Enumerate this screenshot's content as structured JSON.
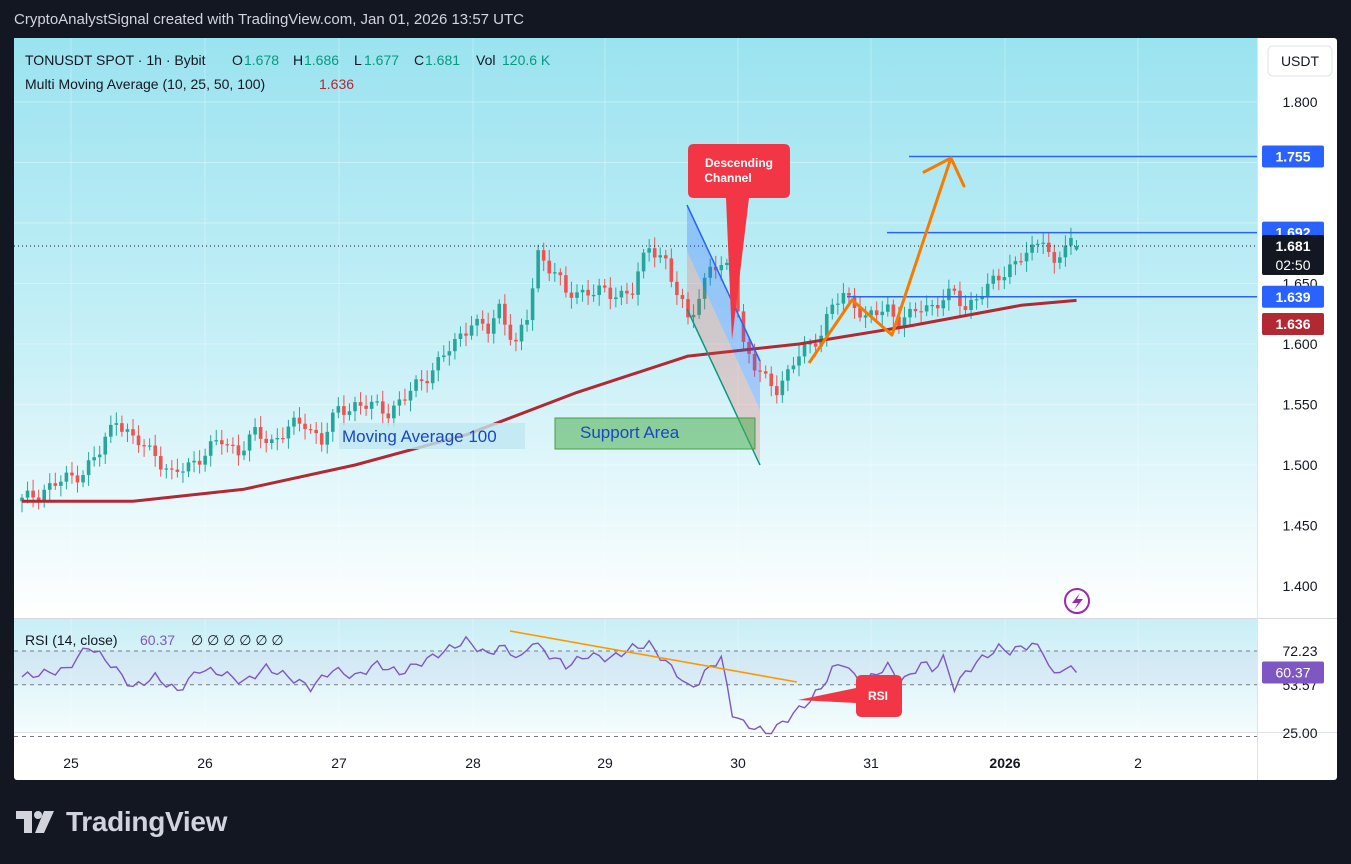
{
  "caption": "CryptoAnalystSignal created with TradingView.com, Jan 01, 2026 13:57 UTC",
  "brand": "TradingView",
  "header": {
    "symbol": "TONUSDT SPOT · 1h · Bybit",
    "o_label": "O",
    "o": "1.678",
    "h_label": "H",
    "h": "1.686",
    "l_label": "L",
    "l": "1.677",
    "c_label": "C",
    "c": "1.681",
    "vol_label": "Vol",
    "vol": "120.6 K",
    "indicator": "Multi Moving Average (10, 25, 50, 100)",
    "indicator_value": "1.636"
  },
  "currency_button": "USDT",
  "price_axis": {
    "ticks": [
      "1.800",
      "1.650",
      "1.600",
      "1.550",
      "1.500",
      "1.450",
      "1.400"
    ],
    "badges": {
      "target": "1.755",
      "resistance": "1.692",
      "last": "1.681",
      "countdown": "02:50",
      "support": "1.639",
      "ma": "1.636"
    }
  },
  "rsi": {
    "label": "RSI (14, close)",
    "value": "60.37",
    "extras": "∅ ∅ ∅ ∅ ∅ ∅",
    "ticks": [
      "72.23",
      "53.57",
      "25.00"
    ],
    "current": "60.37",
    "tag": "RSI"
  },
  "time_axis": [
    "25",
    "26",
    "27",
    "28",
    "29",
    "30",
    "31",
    "2026",
    "2"
  ],
  "annotations": {
    "descending_channel": [
      "Descending",
      "Channel"
    ],
    "support_area": "Support Area",
    "moving_average": "Moving Average 100"
  },
  "colors": {
    "up": "#26a69a",
    "down": "#ef5350",
    "ma": "#b22833",
    "level": "#2962ff",
    "arrow": "#f57c00",
    "rsi": "#7e57c2",
    "rsi_trend": "#ff9800",
    "bg_top": "#9ae3f0",
    "bg_bottom": "#ffffff"
  },
  "chart_data": {
    "type": "candlestick",
    "symbol": "TONUSDT",
    "interval": "1h",
    "x_ticks": [
      "25",
      "26",
      "27",
      "28",
      "29",
      "30",
      "31",
      "2026",
      "2"
    ],
    "price_range": [
      1.37,
      1.84
    ],
    "last": {
      "open": 1.678,
      "high": 1.686,
      "low": 1.677,
      "close": 1.681,
      "volume": "120.6 K"
    },
    "close_anchors": [
      [
        0,
        1.47
      ],
      [
        4,
        1.48
      ],
      [
        8,
        1.488
      ],
      [
        11,
        1.495
      ],
      [
        14,
        1.51
      ],
      [
        17,
        1.54
      ],
      [
        20,
        1.52
      ],
      [
        24,
        1.51
      ],
      [
        27,
        1.49
      ],
      [
        30,
        1.5
      ],
      [
        33,
        1.51
      ],
      [
        36,
        1.52
      ],
      [
        39,
        1.512
      ],
      [
        42,
        1.525
      ],
      [
        45,
        1.52
      ],
      [
        48,
        1.53
      ],
      [
        51,
        1.535
      ],
      [
        54,
        1.52
      ],
      [
        57,
        1.545
      ],
      [
        60,
        1.55
      ],
      [
        63,
        1.548
      ],
      [
        66,
        1.545
      ],
      [
        69,
        1.555
      ],
      [
        72,
        1.57
      ],
      [
        75,
        1.585
      ],
      [
        78,
        1.6
      ],
      [
        81,
        1.62
      ],
      [
        84,
        1.61
      ],
      [
        86,
        1.63
      ],
      [
        89,
        1.6
      ],
      [
        91,
        1.62
      ],
      [
        93,
        1.675
      ],
      [
        96,
        1.66
      ],
      [
        98,
        1.64
      ],
      [
        102,
        1.645
      ],
      [
        106,
        1.64
      ],
      [
        110,
        1.645
      ],
      [
        113,
        1.68
      ],
      [
        116,
        1.67
      ],
      [
        118,
        1.64
      ],
      [
        120,
        1.62
      ],
      [
        122,
        1.64
      ],
      [
        124,
        1.665
      ],
      [
        126,
        1.66
      ],
      [
        128,
        1.665
      ],
      [
        130,
        1.6
      ],
      [
        132,
        1.58
      ],
      [
        134,
        1.57
      ],
      [
        136,
        1.565
      ],
      [
        138,
        1.575
      ],
      [
        140,
        1.59
      ],
      [
        142,
        1.6
      ],
      [
        144,
        1.61
      ],
      [
        146,
        1.63
      ],
      [
        148,
        1.64
      ],
      [
        150,
        1.635
      ],
      [
        152,
        1.62
      ],
      [
        154,
        1.625
      ],
      [
        156,
        1.63
      ],
      [
        158,
        1.62
      ],
      [
        160,
        1.622
      ],
      [
        162,
        1.63
      ],
      [
        164,
        1.632
      ],
      [
        166,
        1.638
      ],
      [
        168,
        1.64
      ],
      [
        170,
        1.63
      ],
      [
        172,
        1.64
      ],
      [
        174,
        1.645
      ],
      [
        176,
        1.655
      ],
      [
        178,
        1.665
      ],
      [
        180,
        1.672
      ],
      [
        182,
        1.675
      ],
      [
        184,
        1.69
      ],
      [
        186,
        1.665
      ],
      [
        188,
        1.682
      ],
      [
        190,
        1.681
      ]
    ],
    "ma100": [
      [
        0,
        1.47
      ],
      [
        20,
        1.47
      ],
      [
        40,
        1.48
      ],
      [
        60,
        1.5
      ],
      [
        80,
        1.525
      ],
      [
        100,
        1.56
      ],
      [
        120,
        1.59
      ],
      [
        140,
        1.6
      ],
      [
        160,
        1.615
      ],
      [
        180,
        1.632
      ],
      [
        190,
        1.636
      ]
    ],
    "levels": [
      {
        "label": "target",
        "price": 1.755
      },
      {
        "label": "resistance",
        "price": 1.692
      },
      {
        "label": "support",
        "price": 1.639
      }
    ],
    "rsi": {
      "name": "RSI (14, close)",
      "range": [
        20,
        85
      ],
      "levels": [
        72.23,
        53.57,
        25.0
      ],
      "current": 60.37,
      "anchors": [
        [
          0,
          58
        ],
        [
          8,
          62
        ],
        [
          12,
          75
        ],
        [
          16,
          65
        ],
        [
          20,
          52
        ],
        [
          24,
          58
        ],
        [
          28,
          50
        ],
        [
          32,
          62
        ],
        [
          36,
          60
        ],
        [
          40,
          55
        ],
        [
          44,
          63
        ],
        [
          48,
          58
        ],
        [
          52,
          52
        ],
        [
          56,
          62
        ],
        [
          60,
          58
        ],
        [
          64,
          65
        ],
        [
          68,
          60
        ],
        [
          72,
          66
        ],
        [
          76,
          72
        ],
        [
          80,
          78
        ],
        [
          84,
          70
        ],
        [
          86,
          75
        ],
        [
          90,
          68
        ],
        [
          92,
          78
        ],
        [
          94,
          72
        ],
        [
          98,
          64
        ],
        [
          102,
          70
        ],
        [
          106,
          68
        ],
        [
          110,
          74
        ],
        [
          113,
          76
        ],
        [
          116,
          66
        ],
        [
          118,
          60
        ],
        [
          120,
          52
        ],
        [
          122,
          55
        ],
        [
          124,
          64
        ],
        [
          126,
          68
        ],
        [
          128,
          38
        ],
        [
          130,
          32
        ],
        [
          132,
          30
        ],
        [
          134,
          27
        ],
        [
          136,
          30
        ],
        [
          138,
          35
        ],
        [
          140,
          40
        ],
        [
          142,
          45
        ],
        [
          144,
          52
        ],
        [
          146,
          62
        ],
        [
          148,
          66
        ],
        [
          150,
          58
        ],
        [
          152,
          55
        ],
        [
          154,
          60
        ],
        [
          156,
          64
        ],
        [
          158,
          56
        ],
        [
          160,
          58
        ],
        [
          162,
          66
        ],
        [
          164,
          62
        ],
        [
          166,
          68
        ],
        [
          168,
          52
        ],
        [
          170,
          60
        ],
        [
          172,
          66
        ],
        [
          174,
          70
        ],
        [
          176,
          74
        ],
        [
          178,
          72
        ],
        [
          180,
          74
        ],
        [
          182,
          76
        ],
        [
          184,
          72
        ],
        [
          186,
          58
        ],
        [
          188,
          64
        ],
        [
          190,
          60.37
        ]
      ]
    }
  }
}
